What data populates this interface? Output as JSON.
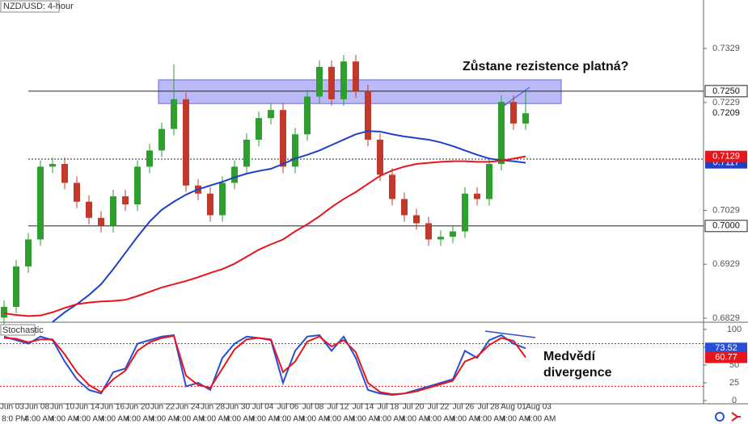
{
  "chart_data": {
    "type": "candlestick",
    "title": "NZD/USD: 4-hour",
    "annotation": "Zůstane rezistence platná?",
    "up_color": "#2e9e2e",
    "down_color": "#c0392b",
    "open": [
      0.683,
      0.685,
      0.6925,
      0.6975,
      0.711,
      0.7115,
      0.708,
      0.7045,
      0.7015,
      0.7,
      0.7055,
      0.704,
      0.711,
      0.714,
      0.718,
      0.7235,
      0.7075,
      0.706,
      0.702,
      0.708,
      0.711,
      0.716,
      0.72,
      0.7215,
      0.711,
      0.717,
      0.724,
      0.7295,
      0.7235,
      0.7305,
      0.725,
      0.716,
      0.7095,
      0.705,
      0.702,
      0.7005,
      0.6975,
      0.698,
      0.699,
      0.706,
      0.705,
      0.7115,
      0.723,
      0.719
    ],
    "high": [
      0.6862,
      0.6937,
      0.6987,
      0.7122,
      0.7127,
      0.7127,
      0.7092,
      0.7057,
      0.7027,
      0.7067,
      0.7067,
      0.7122,
      0.7152,
      0.7192,
      0.73,
      0.7247,
      0.7087,
      0.7072,
      0.7092,
      0.7122,
      0.7172,
      0.7212,
      0.7227,
      0.7227,
      0.7182,
      0.7252,
      0.7307,
      0.7307,
      0.7317,
      0.7317,
      0.7262,
      0.7172,
      0.7107,
      0.7062,
      0.7032,
      0.7017,
      0.6992,
      0.7002,
      0.7072,
      0.7072,
      0.7127,
      0.7242,
      0.7242,
      0.725
    ],
    "low": [
      0.6818,
      0.6838,
      0.6913,
      0.6963,
      0.7098,
      0.7068,
      0.7033,
      0.7003,
      0.6988,
      0.6988,
      0.7028,
      0.7028,
      0.7098,
      0.7128,
      0.7168,
      0.7063,
      0.7048,
      0.7008,
      0.7008,
      0.7068,
      0.7098,
      0.7148,
      0.7188,
      0.7098,
      0.7098,
      0.7158,
      0.7228,
      0.7223,
      0.7223,
      0.7238,
      0.7148,
      0.7083,
      0.7038,
      0.7008,
      0.6993,
      0.6963,
      0.6963,
      0.6968,
      0.6978,
      0.7038,
      0.7038,
      0.7103,
      0.7178,
      0.7178
    ],
    "close": [
      0.685,
      0.6925,
      0.6975,
      0.711,
      0.7115,
      0.708,
      0.7045,
      0.7015,
      0.7,
      0.7055,
      0.704,
      0.711,
      0.714,
      0.718,
      0.7235,
      0.7075,
      0.706,
      0.702,
      0.708,
      0.711,
      0.716,
      0.72,
      0.7215,
      0.711,
      0.717,
      0.724,
      0.7295,
      0.7235,
      0.7305,
      0.725,
      0.716,
      0.7095,
      0.705,
      0.702,
      0.7005,
      0.6975,
      0.698,
      0.699,
      0.706,
      0.705,
      0.7115,
      0.723,
      0.719,
      0.7209
    ],
    "overlays": [
      {
        "color": "#1f3fc8",
        "values": [
          null,
          null,
          null,
          null,
          0.6822,
          0.684,
          0.6855,
          0.6872,
          0.6892,
          0.692,
          0.695,
          0.698,
          0.7008,
          0.703,
          0.7045,
          0.7058,
          0.7068,
          0.7075,
          0.7082,
          0.709,
          0.7097,
          0.7102,
          0.7106,
          0.7115,
          0.7125,
          0.7132,
          0.714,
          0.715,
          0.716,
          0.717,
          0.7176,
          0.7175,
          0.717,
          0.7166,
          0.7163,
          0.716,
          0.7155,
          0.7148,
          0.714,
          0.7132,
          0.7125,
          0.7122,
          0.712,
          0.7117
        ]
      },
      {
        "color": "#e8161c",
        "values": [
          0.6838,
          0.6835,
          0.6833,
          0.6834,
          0.684,
          0.6848,
          0.6855,
          0.6858,
          0.686,
          0.6861,
          0.6863,
          0.687,
          0.6878,
          0.6886,
          0.6892,
          0.6898,
          0.6905,
          0.6913,
          0.692,
          0.693,
          0.6943,
          0.6956,
          0.6966,
          0.6975,
          0.699,
          0.7003,
          0.7018,
          0.7035,
          0.705,
          0.7063,
          0.7078,
          0.7093,
          0.7103,
          0.711,
          0.7115,
          0.7117,
          0.7119,
          0.712,
          0.712,
          0.7119,
          0.7119,
          0.7121,
          0.7125,
          0.7129
        ]
      }
    ],
    "ylim": [
      0.6823,
      0.7419
    ],
    "yticks": [
      0.6829,
      0.6929,
      0.7029,
      0.7229,
      0.7329
    ],
    "levels": [
      {
        "value": 0.725,
        "label": "0.7250"
      },
      {
        "value": 0.7,
        "label": "0.7000"
      }
    ],
    "dotted_level": 0.7124,
    "zone": [
      0.7227,
      0.7271
    ],
    "zone_color": "#8c8cf5",
    "x_labels": [
      "Jun 03",
      "Jun 08",
      "Jun 10",
      "Jun 14",
      "Jun 16",
      "Jun 20",
      "Jun 22",
      "Jun 24",
      "Jun 28",
      "Jun 30",
      "Jul 04",
      "Jul 06",
      "Jul 08",
      "Jul 12",
      "Jul 14",
      "Jul 18",
      "Jul 20",
      "Jul 22",
      "Jul 26",
      "Jul 28",
      "Aug 01",
      "Aug 03"
    ],
    "time_labels": [
      "8:0 PM",
      "4:00 AM",
      "4:00 AM",
      "4:00 AM",
      "4:00 AM",
      "4:00 AM",
      "4:00 AM",
      "4:00 AM",
      "4:00 AM",
      "4:00 AM",
      "4:00 AM",
      "4:00 AM",
      "4:00 AM",
      "4:00 AM",
      "4:00 AM",
      "4:00 AM",
      "4:00 AM",
      "4:00 AM",
      "4:00 AM",
      "4:00 AM",
      "4:00 AM",
      "4:00 AM"
    ],
    "stochastic": {
      "title": "Stochastic",
      "annotation": "Medvědí divergence",
      "ylim": [
        -4.5,
        109
      ],
      "yticks": [
        0,
        25,
        50,
        75,
        100
      ],
      "levels": [
        20,
        80
      ],
      "series": [
        {
          "color": "#2a4fd6",
          "values": [
            90,
            85,
            80,
            90,
            85,
            55,
            30,
            15,
            10,
            40,
            45,
            80,
            85,
            90,
            92,
            20,
            25,
            15,
            60,
            80,
            90,
            88,
            85,
            25,
            70,
            90,
            92,
            70,
            90,
            60,
            15,
            10,
            8,
            10,
            15,
            20,
            25,
            30,
            70,
            60,
            85,
            92,
            80,
            73.52
          ]
        },
        {
          "color": "#e8161c",
          "values": [
            88,
            87,
            82,
            86,
            86,
            65,
            40,
            22,
            12,
            30,
            42,
            70,
            82,
            88,
            91,
            35,
            22,
            18,
            45,
            72,
            86,
            88,
            86,
            40,
            55,
            83,
            90,
            76,
            85,
            68,
            25,
            12,
            9,
            10,
            13,
            18,
            23,
            28,
            55,
            62,
            78,
            88,
            84,
            60.77
          ]
        }
      ]
    }
  }
}
